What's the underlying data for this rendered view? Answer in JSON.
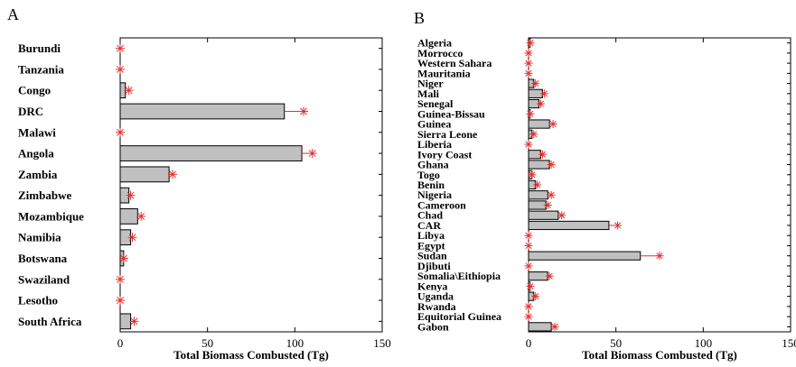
{
  "chart_data": [
    {
      "panel": "A",
      "type": "bar",
      "orientation": "horizontal",
      "categories": [
        "Burundi",
        "Tanzania",
        "Congo",
        "DRC",
        "Malawi",
        "Angola",
        "Zambia",
        "Zimbabwe",
        "Mozambique",
        "Namibia",
        "Botswana",
        "Swaziland",
        "Lesotho",
        "South Africa"
      ],
      "values": [
        0,
        0,
        3,
        94,
        0,
        104,
        28,
        5,
        10,
        6,
        2,
        0,
        0,
        6
      ],
      "error_ends": [
        0,
        0,
        5,
        105,
        0,
        110,
        30,
        6,
        12,
        7,
        2,
        0,
        0,
        8
      ],
      "xlabel": "Total Biomass Combusted (Tg)",
      "xlim": [
        0,
        150
      ],
      "xticks": [
        "0",
        "50",
        "100",
        "150"
      ],
      "bar_color": "#c0c0c0",
      "error_color": "#e63030"
    },
    {
      "panel": "B",
      "type": "bar",
      "orientation": "horizontal",
      "categories": [
        "Algeria",
        "Morrocco",
        "Western Sahara",
        "Mauritania",
        "Niger",
        "Mali",
        "Senegal",
        "Guinea-Bissau",
        "Guinea",
        "Sierra Leone",
        "Liberia",
        "Ivory Coast",
        "Ghana",
        "Togo",
        "Benin",
        "Nigeria",
        "Cameroon",
        "Chad",
        "CAR",
        "Libya",
        "Egypt",
        "Sudan",
        "Djibuti",
        "Somalia\\Eithiopia",
        "Kenya",
        "Uganda",
        "Rwanda",
        "Equitorial Guinea",
        "Gabon"
      ],
      "values": [
        1,
        0,
        0,
        0,
        3,
        8,
        6,
        1,
        12,
        2,
        0,
        7,
        12,
        2,
        4,
        11,
        10,
        17,
        46,
        0,
        0,
        64,
        0,
        11,
        1,
        3,
        0,
        0,
        13
      ],
      "error_ends": [
        1,
        0,
        0,
        0,
        4,
        9,
        7,
        1,
        14,
        3,
        0,
        8,
        13,
        2,
        5,
        13,
        11,
        19,
        51,
        0,
        0,
        75,
        0,
        12,
        1,
        4,
        0,
        0,
        15
      ],
      "xlabel": "Total Biomass Combusted (Tg)",
      "xlim": [
        0,
        150
      ],
      "xticks": [
        "0",
        "50",
        "100",
        "150"
      ],
      "bar_color": "#c0c0c0",
      "error_color": "#e63030"
    }
  ]
}
